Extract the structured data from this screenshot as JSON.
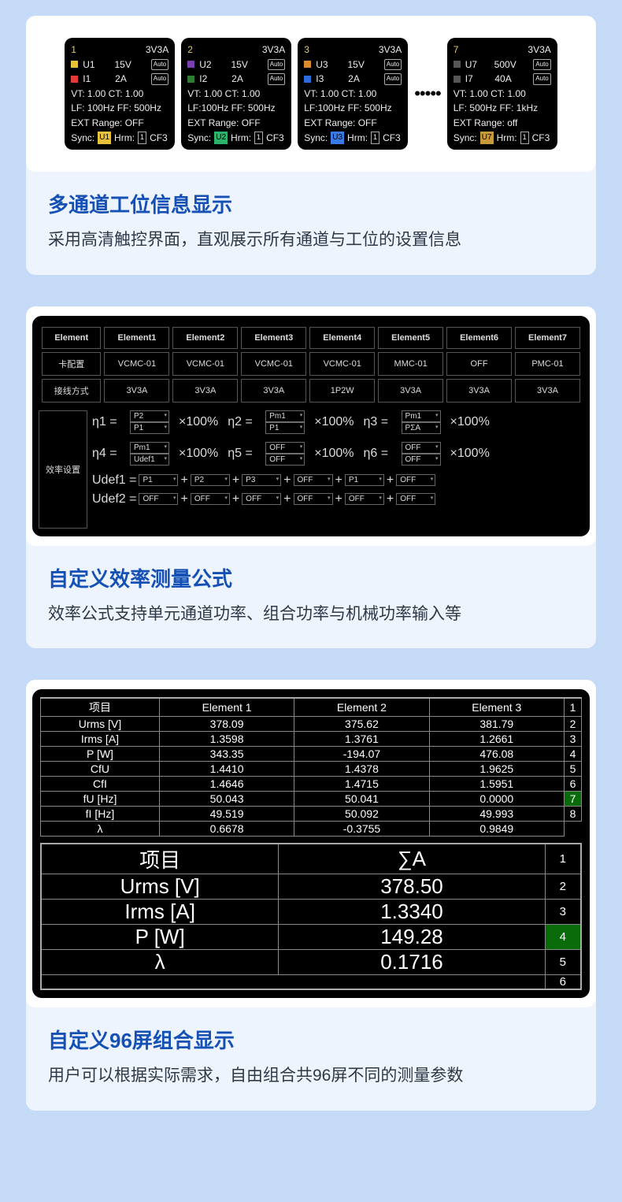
{
  "s1": {
    "title": "多通道工位信息显示",
    "desc": "采用高清触控界面，直观展示所有通道与工位的设置信息",
    "panels": [
      {
        "n": "1",
        "mode": "3V3A",
        "u": "U1",
        "uv": "15V",
        "uc": "#e6c23a",
        "i": "I1",
        "iv": "2A",
        "ic": "#e63a3a",
        "vt": "VT:  1.00 CT:  1.00",
        "lf": "LF:   100Hz FF:   500Hz",
        "ext": "EXT Range:  OFF",
        "sync": "U1",
        "sc": "#e6c23a"
      },
      {
        "n": "2",
        "mode": "3V3A",
        "u": "U2",
        "uv": "15V",
        "uc": "#7a3fb0",
        "i": "I2",
        "iv": "2A",
        "ic": "#2e7d32",
        "vt": "VT:  1.00 CT:  1.00",
        "lf": "LF:100Hz FF: 500Hz",
        "ext": "EXT Range:  OFF",
        "sync": "U2",
        "sc": "#2bb36a"
      },
      {
        "n": "3",
        "mode": "3V3A",
        "u": "U3",
        "uv": "15V",
        "uc": "#d98c2b",
        "i": "I3",
        "iv": "2A",
        "ic": "#2b6cd9",
        "vt": "VT:  1.00 CT:  1.00",
        "lf": "LF:100Hz FF: 500Hz",
        "ext": "EXT Range:  OFF",
        "sync": "U3",
        "sc": "#3a7ae6"
      },
      {
        "n": "7",
        "mode": "3V3A",
        "u": "U7",
        "uv": "500V",
        "uc": "#555",
        "i": "I7",
        "iv": "40A",
        "ic": "#555",
        "vt": "VT:   1.00  CT:   1.00",
        "lf": "LF:  500Hz  FF:   1kHz",
        "ext": "EXT Range:  off",
        "sync": "U7",
        "sc": "#c79a3a"
      }
    ]
  },
  "s2": {
    "title": "自定义效率测量公式",
    "desc": "效率公式支持单元通道功率、组合功率与机械功率输入等",
    "hdr": [
      "Element",
      "Element1",
      "Element2",
      "Element3",
      "Element4",
      "Element5",
      "Element6",
      "Element7"
    ],
    "r1": [
      "卡配置",
      "VCMC-01",
      "VCMC-01",
      "VCMC-01",
      "VCMC-01",
      "MMC-01",
      "OFF",
      "PMC-01"
    ],
    "r2": [
      "接线方式",
      "3V3A",
      "3V3A",
      "3V3A",
      "1P2W",
      "3V3A",
      "3V3A",
      "3V3A"
    ],
    "effside": "效率设置",
    "eta": [
      {
        "l": "η1 =",
        "n": "P2",
        "d": "P1"
      },
      {
        "l": "η2 =",
        "n": "Pm1",
        "d": "P1"
      },
      {
        "l": "η3 =",
        "n": "Pm1",
        "d": "PΣA"
      },
      {
        "l": "η4 =",
        "n": "Pm1",
        "d": "Udef1"
      },
      {
        "l": "η5 =",
        "n": "OFF",
        "d": "OFF"
      },
      {
        "l": "η6 =",
        "n": "OFF",
        "d": "OFF"
      }
    ],
    "x100": "×100%",
    "udef1": {
      "l": "Udef1 =",
      "v": [
        "P1",
        "P2",
        "P3",
        "OFF",
        "P1",
        "OFF"
      ]
    },
    "udef2": {
      "l": "Udef2 =",
      "v": [
        "OFF",
        "OFF",
        "OFF",
        "OFF",
        "OFF",
        "OFF"
      ]
    }
  },
  "s3": {
    "title": "自定义96屏组合显示",
    "desc": "用户可以根据实际需求，自由组合共96屏不同的测量参数",
    "t1": {
      "cols": [
        "项目",
        "Element 1",
        "Element 2",
        "Element 3"
      ],
      "rows": [
        [
          "Urms [V]",
          "378.09",
          "375.62",
          "381.79"
        ],
        [
          "Irms [A]",
          "1.3598",
          "1.3761",
          "1.2661"
        ],
        [
          "P [W]",
          "343.35",
          "-194.07",
          "476.08"
        ],
        [
          "CfU",
          "1.4410",
          "1.4378",
          "1.9625"
        ],
        [
          "CfI",
          "1.4646",
          "1.4715",
          "1.5951"
        ],
        [
          "fU [Hz]",
          "50.043",
          "50.041",
          "0.0000"
        ],
        [
          "fI [Hz]",
          "49.519",
          "50.092",
          "49.993"
        ],
        [
          "λ",
          "0.6678",
          "-0.3755",
          "0.9849"
        ]
      ],
      "active": 6
    },
    "t2": {
      "cols": [
        "项目",
        "∑A"
      ],
      "rows": [
        [
          "Urms [V]",
          "378.50"
        ],
        [
          "Irms [A]",
          "1.3340"
        ],
        [
          "P [W]",
          "149.28"
        ],
        [
          "λ",
          "0.1716"
        ]
      ],
      "active": 4
    }
  }
}
